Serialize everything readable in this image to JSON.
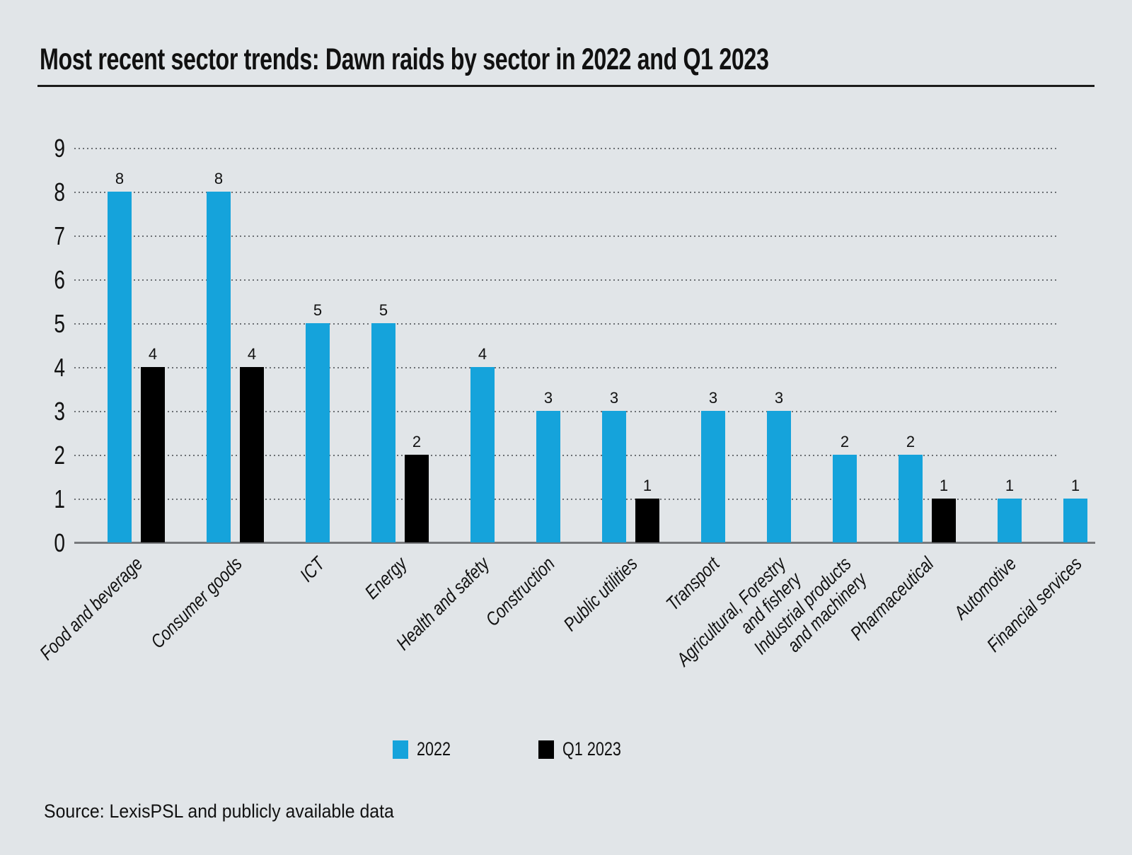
{
  "source": {
    "text": "Source: LexisPSL and publicly available data"
  },
  "colors": {
    "background": "#E1E5E8",
    "series_2022": "#15A3DB",
    "series_q1_2023": "#000000",
    "gridline": "#6c7074",
    "axis_line": "#77797c",
    "text": "#111111"
  },
  "chart_data": {
    "type": "bar",
    "title": "Most recent sector trends: Dawn raids by sector in 2022 and Q1 2023",
    "categories": [
      "Food and beverage",
      "Consumer goods",
      "ICT",
      "Energy",
      "Health and safety",
      "Construction",
      "Public utilities",
      "Transport",
      "Agricultural, Forestry\nand fishery",
      "Industrial products\nand machinery",
      "Pharmaceutical",
      "Automotive",
      "Financial services"
    ],
    "series": [
      {
        "name": "2022",
        "color": "#15A3DB",
        "values": [
          8,
          8,
          5,
          5,
          4,
          3,
          3,
          3,
          3,
          2,
          2,
          1,
          1
        ]
      },
      {
        "name": "Q1 2023",
        "color": "#000000",
        "values": [
          4,
          4,
          null,
          2,
          null,
          null,
          1,
          null,
          null,
          null,
          1,
          null,
          null
        ]
      }
    ],
    "xlabel": "",
    "ylabel": "",
    "ylim": [
      0,
      9
    ],
    "yticks": [
      0,
      1,
      2,
      3,
      4,
      5,
      6,
      7,
      8,
      9
    ],
    "grid": "horizontal-dotted",
    "value_labels": true,
    "legend_position": "bottom",
    "x_tick_rotation": 45
  }
}
